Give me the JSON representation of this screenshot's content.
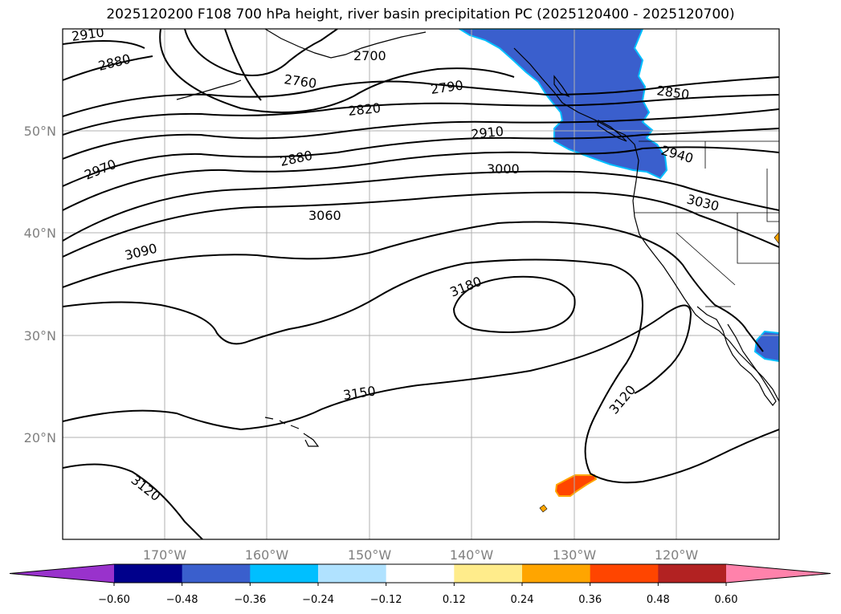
{
  "title": "2025120200 F108 700 hPa height, river basin precipitation PC (2025120400 - 2025120700)",
  "map": {
    "lon_labels": [
      "170°W",
      "160°W",
      "150°W",
      "140°W",
      "130°W",
      "120°W"
    ],
    "lat_labels": [
      "50°N",
      "40°N",
      "30°N",
      "20°N"
    ],
    "contour_labels": [
      {
        "id": "c2910a",
        "text": "2910"
      },
      {
        "id": "c2880a",
        "text": "2880"
      },
      {
        "id": "c2700",
        "text": "2700"
      },
      {
        "id": "c2760",
        "text": "2760"
      },
      {
        "id": "c2790",
        "text": "2790"
      },
      {
        "id": "c2820",
        "text": "2820"
      },
      {
        "id": "c2850",
        "text": "2850"
      },
      {
        "id": "c2910b",
        "text": "2910"
      },
      {
        "id": "c2970",
        "text": "2970"
      },
      {
        "id": "c2880b",
        "text": "2880"
      },
      {
        "id": "c2940",
        "text": "2940"
      },
      {
        "id": "c3000",
        "text": "3000"
      },
      {
        "id": "c3030",
        "text": "3030"
      },
      {
        "id": "c3060",
        "text": "3060"
      },
      {
        "id": "c3090",
        "text": "3090"
      },
      {
        "id": "c3180",
        "text": "3180"
      },
      {
        "id": "c3150",
        "text": "3150"
      },
      {
        "id": "c3120a",
        "text": "3120"
      },
      {
        "id": "c3120b",
        "text": "3120"
      }
    ]
  },
  "colorbar": {
    "colors": [
      "#9932cc",
      "#00008b",
      "#3a5fcd",
      "#00bfff",
      "#b0e2ff",
      "#ffffff",
      "#ffec8b",
      "#ffa500",
      "#ff4500",
      "#b22222",
      "#ff82ab"
    ],
    "tick_labels": [
      "−0.60",
      "−0.48",
      "−0.36",
      "−0.24",
      "−0.12",
      "0.12",
      "0.24",
      "0.36",
      "0.48",
      "0.60"
    ]
  }
}
